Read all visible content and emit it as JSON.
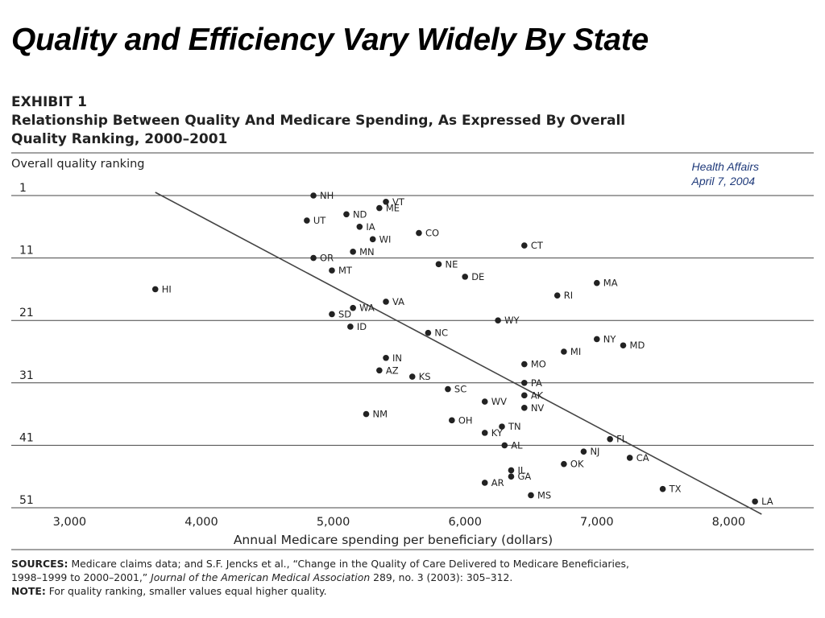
{
  "slide_title": "Quality and Efficiency Vary Widely By State",
  "exhibit": {
    "label": "EXHIBIT 1",
    "title_line1": "Relationship Between Quality And Medicare Spending, As Expressed By Overall",
    "title_line2": "Quality Ranking, 2000–2001"
  },
  "source_tag": {
    "line1": "Health Affairs",
    "line2": "April 7, 2004"
  },
  "notes": {
    "sources_label": "SOURCES:",
    "sources_text1": " Medicare claims data; and S.F. Jencks et al., “Change in the Quality of Care Delivered to Medicare Beneficiaries,",
    "sources_text2": "1998–1999 to 2000–2001,” ",
    "sources_journal": "Journal of the American Medical Association",
    "sources_text3": " 289, no. 3 (2003): 305–312.",
    "note_label": "NOTE:",
    "note_text": " For quality ranking, smaller values equal higher quality."
  },
  "colors": {
    "ink": "#222222",
    "rule": "#444444",
    "points": "#222222"
  },
  "chart_data": {
    "type": "scatter",
    "ylabel": "Overall quality ranking",
    "xlabel": "Annual Medicare spending per beneficiary (dollars)",
    "x_ticks": [
      3000,
      4000,
      5000,
      6000,
      7000,
      8000
    ],
    "x_tick_labels": [
      "3,000",
      "4,000",
      "5,000",
      "6,000",
      "7,000",
      "8,000"
    ],
    "y_ticks": [
      1,
      11,
      21,
      31,
      41,
      51
    ],
    "y_tick_labels": [
      "1",
      "11",
      "21",
      "31",
      "41",
      "51"
    ],
    "xlim": [
      2800,
      8500
    ],
    "ylim": [
      1,
      51
    ],
    "y_inverted": true,
    "grid": "horizontal",
    "trendline": {
      "x": [
        3650,
        8250
      ],
      "y": [
        1,
        51
      ]
    },
    "points": [
      {
        "label": "NH",
        "x": 4850,
        "y": 1
      },
      {
        "label": "VT",
        "x": 5400,
        "y": 2
      },
      {
        "label": "ME",
        "x": 5350,
        "y": 3
      },
      {
        "label": "ND",
        "x": 5100,
        "y": 4
      },
      {
        "label": "UT",
        "x": 4800,
        "y": 5
      },
      {
        "label": "IA",
        "x": 5200,
        "y": 6
      },
      {
        "label": "CO",
        "x": 5650,
        "y": 7
      },
      {
        "label": "WI",
        "x": 5300,
        "y": 8
      },
      {
        "label": "CT",
        "x": 6450,
        "y": 9
      },
      {
        "label": "MN",
        "x": 5150,
        "y": 10
      },
      {
        "label": "OR",
        "x": 4850,
        "y": 11
      },
      {
        "label": "NE",
        "x": 5800,
        "y": 12
      },
      {
        "label": "MT",
        "x": 4990,
        "y": 13
      },
      {
        "label": "DE",
        "x": 6000,
        "y": 14
      },
      {
        "label": "MA",
        "x": 7000,
        "y": 15
      },
      {
        "label": "HI",
        "x": 3650,
        "y": 16
      },
      {
        "label": "RI",
        "x": 6700,
        "y": 17
      },
      {
        "label": "VA",
        "x": 5400,
        "y": 18
      },
      {
        "label": "WA",
        "x": 5150,
        "y": 19
      },
      {
        "label": "SD",
        "x": 4990,
        "y": 20
      },
      {
        "label": "WY",
        "x": 6250,
        "y": 21
      },
      {
        "label": "ID",
        "x": 5130,
        "y": 22
      },
      {
        "label": "NC",
        "x": 5720,
        "y": 23
      },
      {
        "label": "NY",
        "x": 7000,
        "y": 24
      },
      {
        "label": "MD",
        "x": 7200,
        "y": 25
      },
      {
        "label": "MI",
        "x": 6750,
        "y": 26
      },
      {
        "label": "IN",
        "x": 5400,
        "y": 27
      },
      {
        "label": "MO",
        "x": 6450,
        "y": 28
      },
      {
        "label": "AZ",
        "x": 5350,
        "y": 29
      },
      {
        "label": "KS",
        "x": 5600,
        "y": 30
      },
      {
        "label": "PA",
        "x": 6450,
        "y": 31
      },
      {
        "label": "SC",
        "x": 5870,
        "y": 32
      },
      {
        "label": "AK",
        "x": 6450,
        "y": 33
      },
      {
        "label": "WV",
        "x": 6150,
        "y": 34
      },
      {
        "label": "NV",
        "x": 6450,
        "y": 35
      },
      {
        "label": "NM",
        "x": 5250,
        "y": 36
      },
      {
        "label": "OH",
        "x": 5900,
        "y": 37
      },
      {
        "label": "TN",
        "x": 6280,
        "y": 38
      },
      {
        "label": "KY",
        "x": 6150,
        "y": 39
      },
      {
        "label": "FL",
        "x": 7100,
        "y": 40
      },
      {
        "label": "AL",
        "x": 6300,
        "y": 41
      },
      {
        "label": "NJ",
        "x": 6900,
        "y": 42
      },
      {
        "label": "CA",
        "x": 7250,
        "y": 43
      },
      {
        "label": "OK",
        "x": 6750,
        "y": 44
      },
      {
        "label": "IL",
        "x": 6350,
        "y": 45
      },
      {
        "label": "GA",
        "x": 6350,
        "y": 46
      },
      {
        "label": "AR",
        "x": 6150,
        "y": 47
      },
      {
        "label": "TX",
        "x": 7500,
        "y": 48
      },
      {
        "label": "MS",
        "x": 6500,
        "y": 49
      },
      {
        "label": "LA",
        "x": 8200,
        "y": 50
      }
    ]
  }
}
